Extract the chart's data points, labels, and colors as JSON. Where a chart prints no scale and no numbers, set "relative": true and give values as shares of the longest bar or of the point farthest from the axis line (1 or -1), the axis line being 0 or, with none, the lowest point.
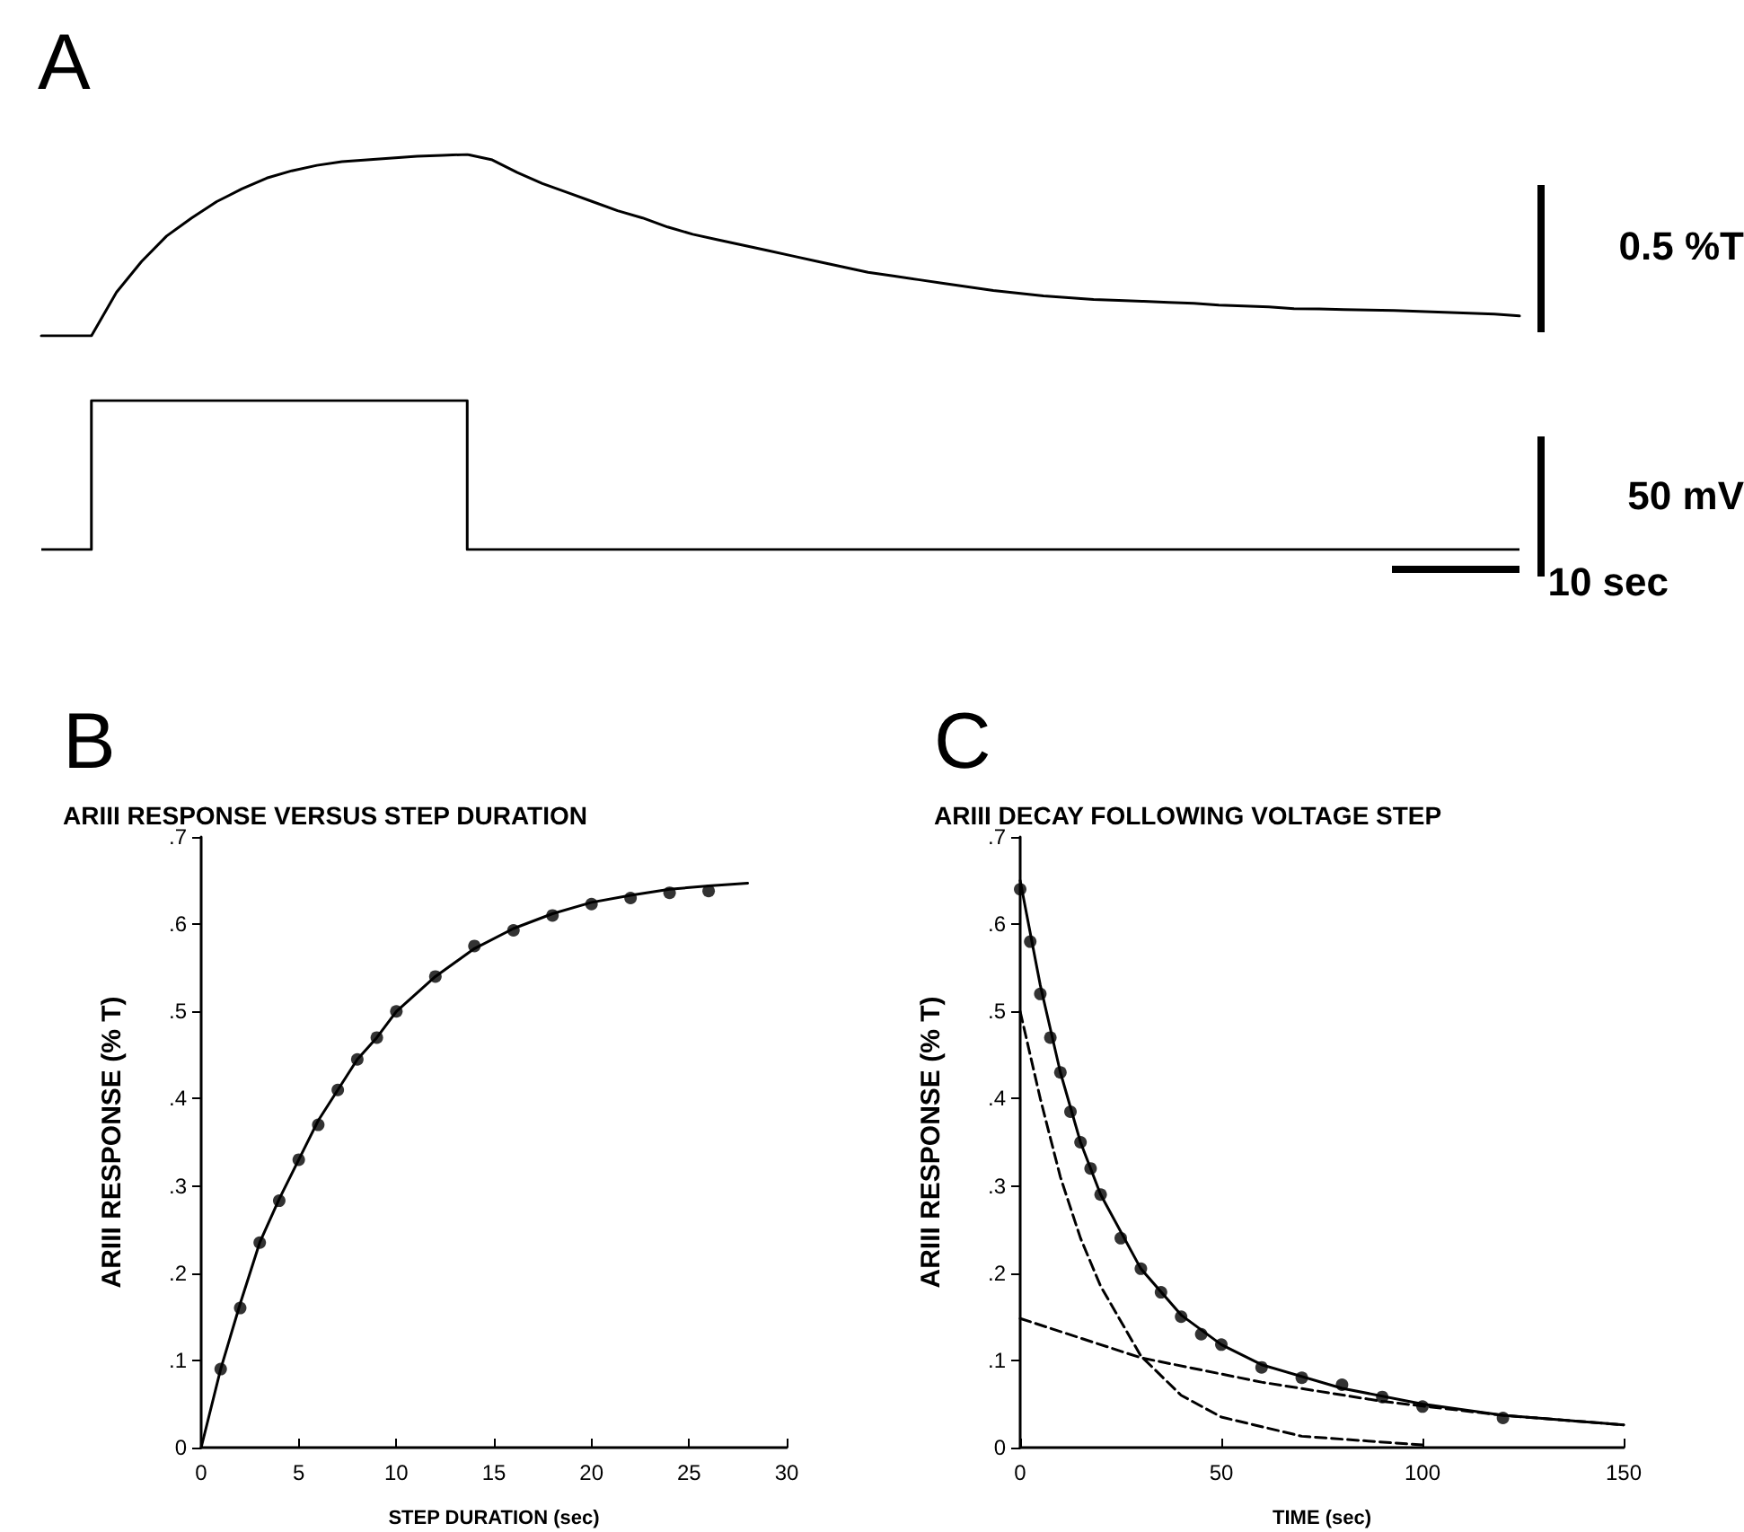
{
  "chart_data": [
    {
      "type": "line",
      "title": "A",
      "relative": true,
      "annotations": [
        "0.5 %T"
      ],
      "categories": [
        null,
        null,
        null,
        null,
        null,
        null,
        null,
        null,
        null,
        null,
        null,
        null,
        null,
        null,
        null,
        null,
        null,
        null,
        null,
        null,
        null,
        null,
        null,
        null,
        null,
        null,
        null,
        null,
        null,
        null,
        null,
        null,
        null,
        null,
        null,
        null,
        null,
        null,
        null,
        null,
        null,
        null,
        null,
        null,
        null,
        null,
        null,
        null,
        null,
        null,
        null,
        null,
        null,
        null,
        null,
        null,
        null,
        null,
        null,
        null
      ],
      "series": [
        {
          "color": "#000000",
          "values": [
            0,
            0,
            0,
            0.24,
            0.41,
            0.55,
            0.65,
            0.74,
            0.81,
            0.87,
            0.91,
            0.94,
            0.96,
            0.97,
            0.98,
            0.99,
            0.995,
            1,
            0.97,
            0.9,
            0.84,
            0.79,
            0.74,
            0.69,
            0.65,
            0.6,
            0.56,
            0.53,
            0.5,
            0.47,
            0.44,
            0.41,
            0.38,
            0.35,
            0.33,
            0.31,
            0.29,
            0.27,
            0.25,
            0.235,
            0.22,
            0.21,
            0.2,
            0.195,
            0.19,
            0.185,
            0.18,
            0.17,
            0.165,
            0.16,
            0.15,
            0.148,
            0.145,
            0.142,
            0.14,
            0.135,
            0.13,
            0.125,
            0.12,
            0.11
          ]
        }
      ]
    },
    {
      "type": "step",
      "relative": true,
      "annotations": [
        "50 mV",
        "10 sec"
      ],
      "categories": [
        null,
        null,
        null,
        null,
        null,
        null,
        null,
        null,
        null,
        null,
        null,
        null,
        null,
        null,
        null,
        null,
        null,
        null,
        null,
        null,
        null,
        null,
        null,
        null,
        null,
        null,
        null,
        null,
        null,
        null,
        null,
        null,
        null,
        null,
        null,
        null,
        null,
        null,
        null,
        null,
        null,
        null,
        null,
        null,
        null,
        null,
        null,
        null,
        null,
        null,
        null,
        null,
        null,
        null,
        null,
        null,
        null,
        null,
        null,
        null
      ],
      "series": [
        {
          "color": "#000000",
          "values": [
            0,
            0,
            1,
            1,
            1,
            1,
            1,
            1,
            1,
            1,
            1,
            1,
            1,
            1,
            1,
            1,
            1,
            0,
            0,
            0,
            0,
            0,
            0,
            0,
            0,
            0,
            0,
            0,
            0,
            0,
            0,
            0,
            0,
            0,
            0,
            0,
            0,
            0,
            0,
            0,
            0,
            0,
            0,
            0,
            0,
            0,
            0,
            0,
            0,
            0,
            0,
            0,
            0,
            0,
            0,
            0,
            0,
            0,
            0,
            0
          ]
        }
      ]
    },
    {
      "type": "scatter",
      "title": "B",
      "subtitle": "ARIII RESPONSE VERSUS STEP DURATION",
      "xlabel": "STEP DURATION (sec)",
      "ylabel": "ARIII RESPONSE (% T)",
      "xlim": [
        0,
        30
      ],
      "xticks": [
        0,
        5,
        10,
        15,
        20,
        25,
        30
      ],
      "ylim": [
        0,
        0.7
      ],
      "yticks": [
        0,
        {
          "value": 0.1,
          "label": ".1"
        },
        {
          "value": 0.2,
          "label": ".2"
        },
        {
          "value": 0.3,
          "label": ".3"
        },
        {
          "value": 0.4,
          "label": ".4"
        },
        {
          "value": 0.5,
          "label": ".5"
        },
        {
          "value": 0.6,
          "label": ".6"
        },
        {
          "value": 0.7,
          "label": ".7"
        }
      ],
      "marker": "circle",
      "series": [
        {
          "color": "#000000",
          "x": [
            1,
            2,
            3,
            4,
            5,
            6,
            7,
            8,
            9,
            10,
            12,
            14,
            16,
            18,
            20,
            22,
            24,
            26
          ],
          "values": [
            0.09,
            0.16,
            0.235,
            0.283,
            0.33,
            0.37,
            0.41,
            0.445,
            0.47,
            0.5,
            0.54,
            0.575,
            0.593,
            0.61,
            0.623,
            0.63,
            0.636,
            0.638
          ]
        },
        {
          "type": "line",
          "marker": "none",
          "line_style": "solid",
          "color": "#000000",
          "x": [
            0,
            1,
            2,
            3,
            4,
            5,
            6,
            7,
            8,
            9,
            10,
            12,
            14,
            16,
            18,
            20,
            22,
            24,
            26,
            28
          ],
          "values": [
            0,
            0.09,
            0.165,
            0.235,
            0.285,
            0.33,
            0.375,
            0.41,
            0.445,
            0.47,
            0.5,
            0.54,
            0.572,
            0.595,
            0.612,
            0.625,
            0.633,
            0.64,
            0.644,
            0.647
          ]
        }
      ]
    },
    {
      "type": "scatter",
      "title": "C",
      "subtitle": "ARIII DECAY FOLLOWING VOLTAGE STEP",
      "xlabel": "TIME (sec)",
      "ylabel": "ARIII RESPONSE (% T)",
      "xlim": [
        0,
        150
      ],
      "xticks": [
        0,
        50,
        100,
        150
      ],
      "ylim": [
        0,
        0.7
      ],
      "yticks": [
        0,
        {
          "value": 0.1,
          "label": ".1"
        },
        {
          "value": 0.2,
          "label": ".2"
        },
        {
          "value": 0.3,
          "label": ".3"
        },
        {
          "value": 0.4,
          "label": ".4"
        },
        {
          "value": 0.5,
          "label": ".5"
        },
        {
          "value": 0.6,
          "label": ".6"
        },
        {
          "value": 0.7,
          "label": ".7"
        }
      ],
      "marker": "circle",
      "series": [
        {
          "color": "#000000",
          "x": [
            0,
            2.5,
            5,
            7.5,
            10,
            12.5,
            15,
            17.5,
            20,
            25,
            30,
            35,
            40,
            45,
            50,
            60,
            70,
            80,
            90,
            100,
            120
          ],
          "values": [
            0.64,
            0.58,
            0.52,
            0.47,
            0.43,
            0.385,
            0.35,
            0.32,
            0.29,
            0.24,
            0.205,
            0.178,
            0.15,
            0.13,
            0.118,
            0.092,
            0.08,
            0.072,
            0.058,
            0.047,
            0.034
          ]
        },
        {
          "type": "line",
          "marker": "none",
          "line_style": "solid",
          "color": "#000000",
          "x": [
            0,
            5,
            10,
            15,
            20,
            30,
            40,
            50,
            60,
            80,
            100,
            120,
            150
          ],
          "values": [
            0.65,
            0.53,
            0.43,
            0.35,
            0.29,
            0.205,
            0.152,
            0.118,
            0.095,
            0.068,
            0.05,
            0.037,
            0.026
          ]
        },
        {
          "type": "line",
          "marker": "none",
          "line_style": "dashed",
          "color": "#000000",
          "x": [
            0,
            5,
            10,
            15,
            20,
            30,
            40,
            50,
            70,
            100
          ],
          "values": [
            0.5,
            0.4,
            0.31,
            0.24,
            0.185,
            0.105,
            0.06,
            0.035,
            0.013,
            0.003
          ]
        },
        {
          "type": "line",
          "marker": "none",
          "line_style": "dashed",
          "color": "#000000",
          "x": [
            0,
            30,
            60,
            90,
            120,
            150
          ],
          "values": [
            0.148,
            0.103,
            0.075,
            0.053,
            0.037,
            0.026
          ]
        }
      ]
    }
  ]
}
